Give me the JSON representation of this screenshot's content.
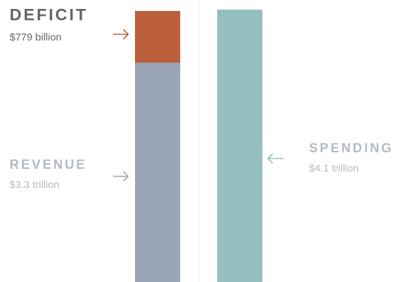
{
  "chart_data": {
    "type": "bar",
    "stacked": true,
    "categories": [
      null,
      null
    ],
    "series": [
      {
        "name": "REVENUE",
        "color": "#9aa6b6",
        "label_color": "#b4b9c1",
        "values": [
          3300,
          null
        ],
        "value_labels": [
          "$3.3 trillion",
          null
        ]
      },
      {
        "name": "DEFICIT",
        "color": "#bb5f3c",
        "label_color": "#666666",
        "values": [
          779,
          null
        ],
        "value_labels": [
          "$779 billion",
          null
        ]
      },
      {
        "name": "SPENDING",
        "color": "#94bfbf",
        "label_color": "#b6bcc2",
        "values": [
          null,
          4100
        ],
        "value_labels": [
          null,
          "$4.1 trillion"
        ]
      }
    ]
  }
}
